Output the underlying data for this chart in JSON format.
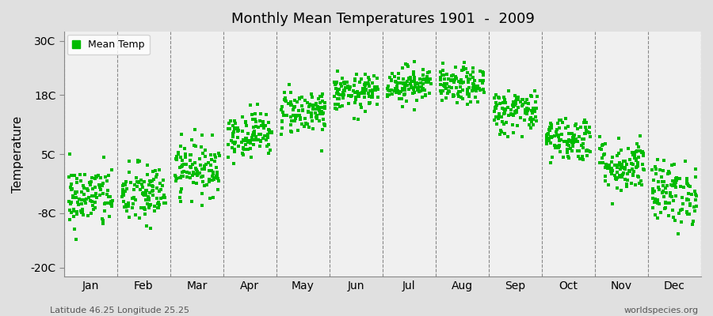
{
  "title": "Monthly Mean Temperatures 1901  -  2009",
  "ylabel": "Temperature",
  "yticks": [
    -20,
    -8,
    5,
    18,
    30
  ],
  "ytick_labels": [
    "-20C",
    "-8C",
    "5C",
    "18C",
    "30C"
  ],
  "ylim": [
    -22,
    32
  ],
  "months": [
    "Jan",
    "Feb",
    "Mar",
    "Apr",
    "May",
    "Jun",
    "Jul",
    "Aug",
    "Sep",
    "Oct",
    "Nov",
    "Dec"
  ],
  "legend_label": "Mean Temp",
  "dot_color": "#00bb00",
  "dot_size": 5,
  "figure_bg_color": "#e0e0e0",
  "plot_bg_color": "#f0f0f0",
  "grid_color": "#888888",
  "bottom_left_text": "Latitude 46.25 Longitude 25.25",
  "bottom_right_text": "worldspecies.org",
  "month_means": [
    -4.5,
    -4.0,
    2.0,
    9.5,
    14.5,
    18.5,
    20.5,
    20.0,
    14.5,
    8.5,
    2.5,
    -3.5
  ],
  "month_stds": [
    3.5,
    3.5,
    3.0,
    2.5,
    2.5,
    2.0,
    2.0,
    2.0,
    2.5,
    2.5,
    3.0,
    3.5
  ],
  "n_years": 109,
  "seed": 42
}
